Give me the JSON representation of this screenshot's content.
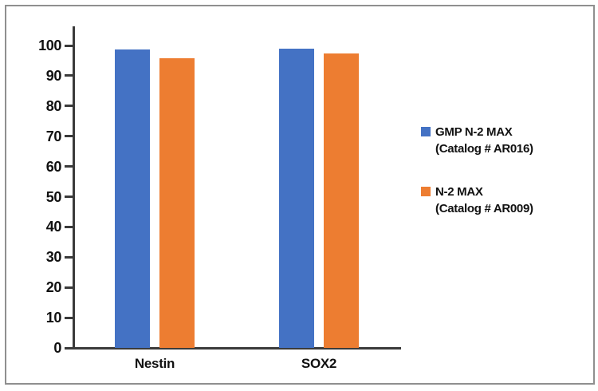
{
  "chart_data": {
    "type": "bar",
    "categories": [
      "Nestin",
      "SOX2"
    ],
    "series": [
      {
        "name": "GMP N-2 MAX",
        "catalog": "(Catalog # AR016)",
        "color": "#4472C4",
        "values": [
          98.6,
          98.9
        ]
      },
      {
        "name": "N-2 MAX",
        "catalog": "(Catalog # AR009)",
        "color": "#ED7D31",
        "values": [
          95.8,
          97.4
        ]
      }
    ],
    "title": "",
    "xlabel": "",
    "ylabel": "",
    "ylim": [
      0,
      100
    ],
    "yticks": [
      0,
      10,
      20,
      30,
      40,
      50,
      60,
      70,
      80,
      90,
      100
    ],
    "grid": false,
    "legend_position": "right"
  },
  "colors": {
    "axis": "#3a3a3a",
    "text": "#111111",
    "frame_border": "#8f8f8f",
    "background": "#ffffff"
  }
}
